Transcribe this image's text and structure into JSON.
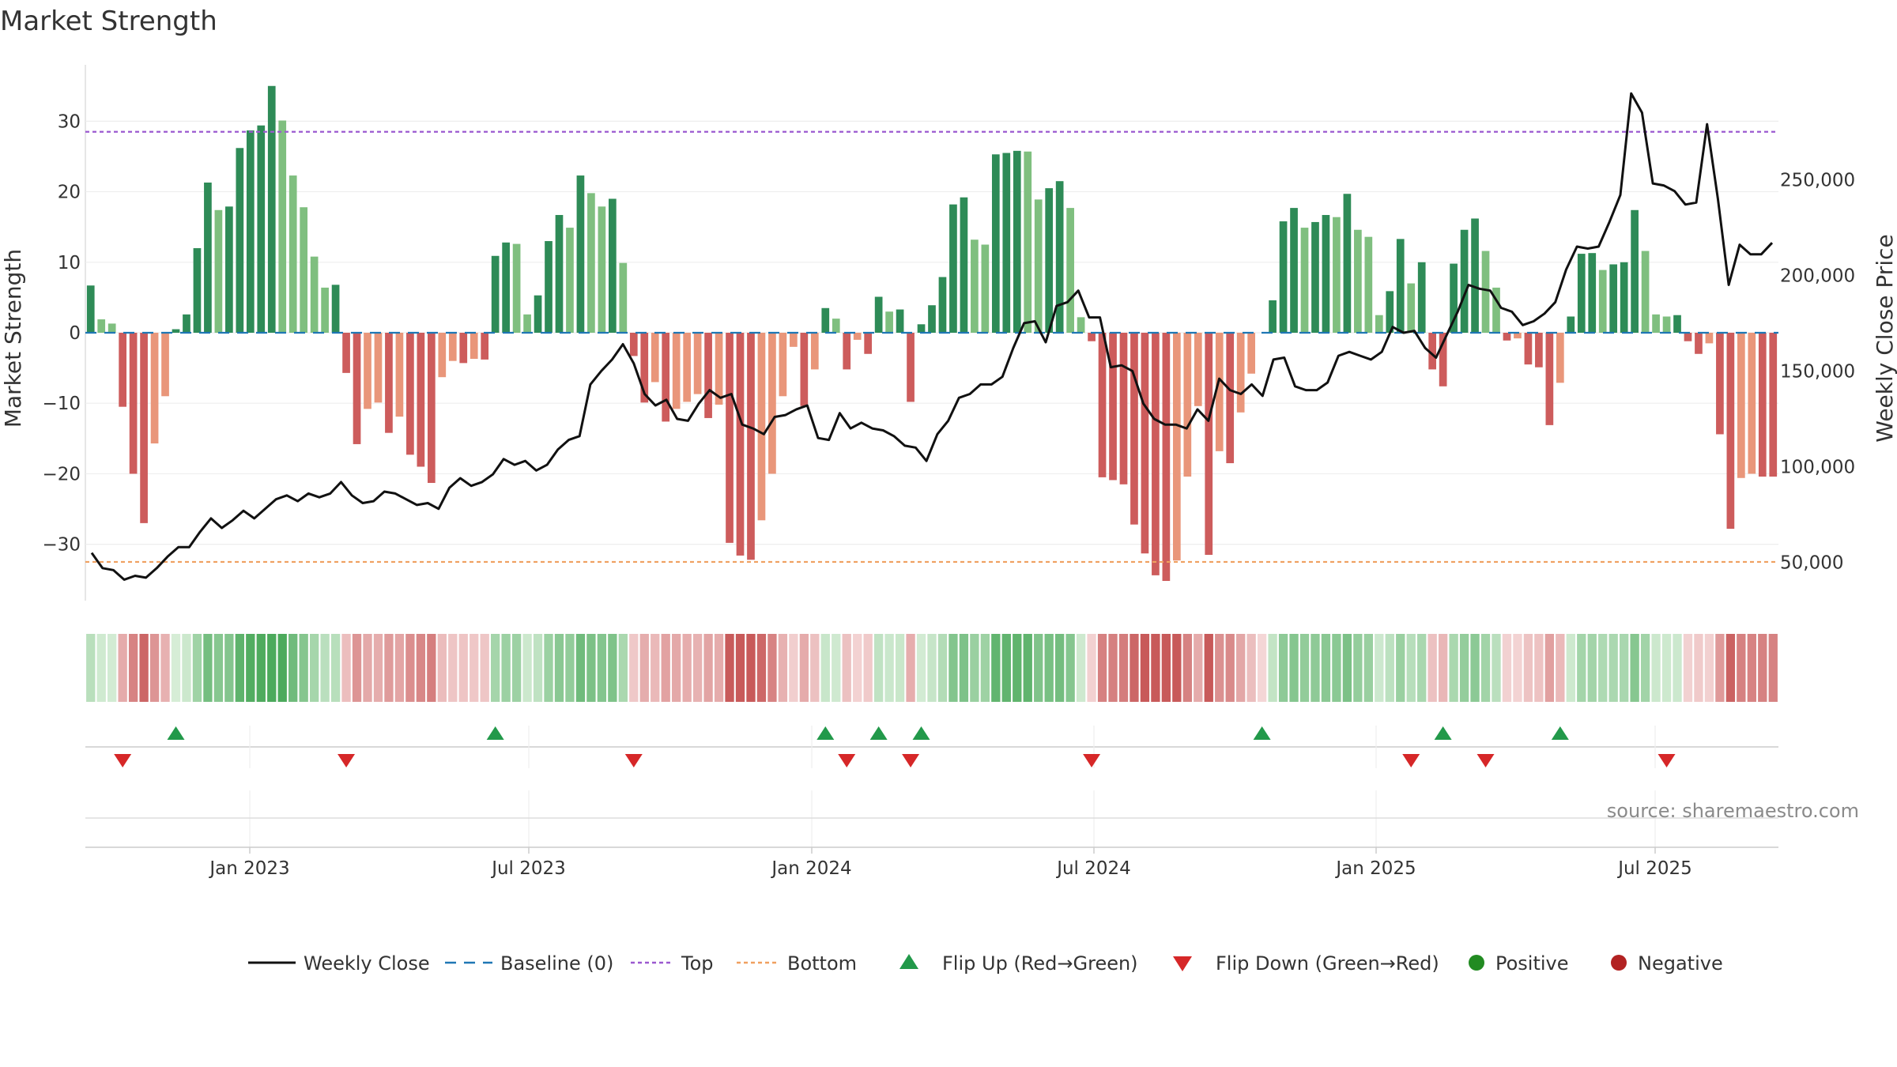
{
  "chart_data": {
    "type": "bar",
    "title": "Market Strength",
    "y_left_label": "Market Strength",
    "y_right_label": "Weekly Close Price",
    "source": "source: sharemaestro.com",
    "x_ticks": [
      "Jan 2023",
      "Jul 2023",
      "Jan 2024",
      "Jul 2024",
      "Jan 2025",
      "Jul 2025"
    ],
    "y_left_ticks": [
      30,
      20,
      10,
      0,
      -10,
      -20,
      -30
    ],
    "y_left_range": [
      -38,
      38
    ],
    "y_right_ticks": [
      250000,
      200000,
      150000,
      100000,
      50000
    ],
    "y_right_tick_labels": [
      "250,000",
      "200,000",
      "150,000",
      "100,000",
      "50,000"
    ],
    "y_right_range": [
      30000,
      310000
    ],
    "top_line": 28.5,
    "bottom_line": -32.5,
    "colors": {
      "green_strong": "#2e8b57",
      "green_light": "#7fbf7f",
      "red_strong": "#cd5c5c",
      "red_light": "#e9967a",
      "price_line": "#111111",
      "baseline": "#1f77b4",
      "top": "#9b59d0",
      "bottom": "#f0a060",
      "flip_up": "#22994a",
      "flip_down": "#d62728",
      "positive": "#228b22",
      "negative": "#b22222"
    },
    "strength": [
      6.7,
      1.9,
      1.3,
      -10.5,
      -20,
      -27,
      -15.7,
      -9,
      0.5,
      2.6,
      12,
      21.3,
      17.4,
      17.9,
      26.2,
      28.7,
      29.4,
      35,
      30.1,
      22.3,
      17.8,
      10.8,
      6.4,
      6.8,
      -5.7,
      -15.8,
      -10.8,
      -9.9,
      -14.2,
      -11.9,
      -17.3,
      -19,
      -21.3,
      -6.3,
      -4,
      -4.3,
      -3.7,
      -3.8,
      10.9,
      12.8,
      12.6,
      2.6,
      5.3,
      13,
      16.7,
      14.9,
      22.3,
      19.8,
      17.9,
      19,
      9.9,
      -3.3,
      -9.9,
      -7,
      -12.6,
      -10.8,
      -9.8,
      -8.7,
      -12.1,
      -10.2,
      -29.8,
      -31.6,
      -32.2,
      -26.6,
      -20,
      -9,
      -2,
      -10.4,
      -5.2,
      3.5,
      2,
      -5.2,
      -1,
      -3,
      5.1,
      3,
      3.3,
      -9.8,
      1.2,
      3.9,
      7.9,
      18.2,
      19.2,
      13.2,
      12.5,
      25.3,
      25.5,
      25.8,
      25.7,
      18.9,
      20.5,
      21.5,
      17.7,
      2.2,
      -1.2,
      -20.5,
      -20.9,
      -21.5,
      -27.2,
      -31.3,
      -34.4,
      -35.2,
      -32.3,
      -20.4,
      -10.4,
      -31.5,
      -16.8,
      -18.5,
      -11.3,
      -5.8,
      0,
      4.6,
      15.8,
      17.7,
      14.9,
      15.7,
      16.7,
      16.4,
      19.7,
      14.6,
      13.6,
      2.5,
      5.9,
      13.3,
      7,
      10,
      -5.2,
      -7.6,
      9.8,
      14.6,
      16.2,
      11.6,
      6.4,
      -1.1,
      -0.8,
      -4.5,
      -4.9,
      -13.1,
      -7.1,
      2.3,
      11.2,
      11.3,
      8.9,
      9.7,
      10,
      17.4,
      11.6,
      2.6,
      2.3,
      2.5,
      -1.2,
      -3,
      -1.5,
      -14.4,
      -27.8,
      -20.6,
      -20,
      -20.4,
      -20.4
    ],
    "price": [
      55000,
      47000,
      46000,
      41000,
      43000,
      42000,
      47000,
      53000,
      58000,
      58000,
      66000,
      73000,
      68000,
      72000,
      77000,
      73000,
      78000,
      83000,
      85000,
      82000,
      86000,
      84000,
      86000,
      92000,
      85000,
      81000,
      82000,
      87000,
      86000,
      83000,
      80000,
      81000,
      78000,
      89000,
      94000,
      90000,
      92000,
      96000,
      104000,
      101000,
      103000,
      98000,
      101000,
      109000,
      114000,
      116000,
      143000,
      150000,
      156000,
      164000,
      154000,
      138000,
      132000,
      135000,
      125000,
      124000,
      133000,
      140000,
      136000,
      138000,
      122000,
      120000,
      117000,
      126000,
      127000,
      130000,
      132000,
      115000,
      114000,
      128000,
      120000,
      123000,
      120000,
      119000,
      116000,
      111000,
      110000,
      103000,
      117000,
      124000,
      136000,
      138000,
      143000,
      143000,
      147000,
      162000,
      175000,
      176000,
      165000,
      184000,
      186000,
      192000,
      178000,
      178000,
      152000,
      153000,
      150000,
      133000,
      125000,
      122000,
      122000,
      120000,
      130000,
      124000,
      146000,
      140000,
      138000,
      143000,
      137000,
      156000,
      157000,
      142000,
      140000,
      140000,
      144000,
      158000,
      160000,
      158000,
      156000,
      160000,
      173000,
      170000,
      171000,
      162000,
      157000,
      169000,
      181000,
      195000,
      193000,
      192000,
      183000,
      181000,
      174000,
      176000,
      180000,
      186000,
      203000,
      215000,
      214000,
      215000,
      228000,
      242000,
      295000,
      285000,
      248000,
      247000,
      244000,
      237000,
      238000,
      279000,
      240000,
      195000,
      216000,
      211000,
      211000,
      217000
    ],
    "flip_up_index": [
      8,
      38,
      69,
      74,
      78,
      110,
      127,
      138
    ],
    "flip_down_index": [
      3,
      24,
      51,
      71,
      77,
      94,
      124,
      131,
      148
    ],
    "legend": [
      {
        "label": "Weekly Close",
        "kind": "line-solid",
        "color_key": "price_line"
      },
      {
        "label": "Baseline (0)",
        "kind": "line-dashed",
        "color_key": "baseline"
      },
      {
        "label": "Top",
        "kind": "line-dotted",
        "color_key": "top"
      },
      {
        "label": "Bottom",
        "kind": "line-dotted",
        "color_key": "bottom"
      },
      {
        "label": "Flip Up (Red→Green)",
        "kind": "triangle-up",
        "color_key": "flip_up"
      },
      {
        "label": "Flip Down (Green→Red)",
        "kind": "triangle-down",
        "color_key": "flip_down"
      },
      {
        "label": "Positive",
        "kind": "circle",
        "color_key": "positive"
      },
      {
        "label": "Negative",
        "kind": "circle",
        "color_key": "negative"
      }
    ]
  }
}
